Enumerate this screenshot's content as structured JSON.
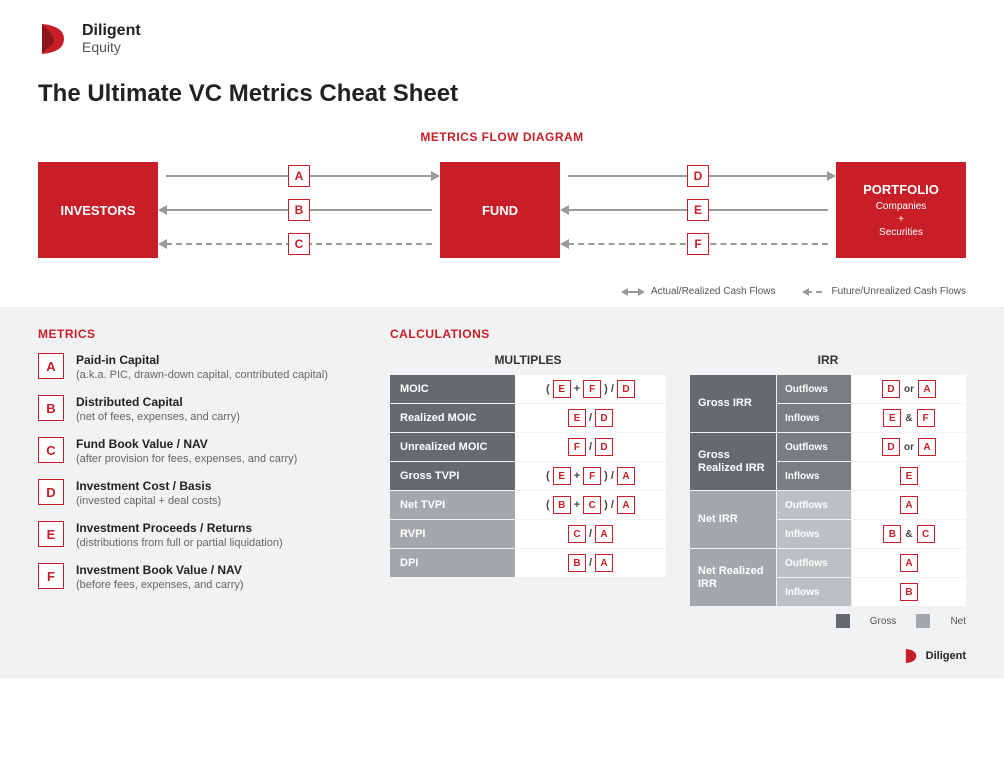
{
  "brand": {
    "name": "Diligent",
    "sub": "Equity",
    "color": "#c81e28"
  },
  "title": "The Ultimate VC Metrics Cheat Sheet",
  "flow": {
    "heading": "METRICS FLOW DIAGRAM",
    "boxes": {
      "investors": "INVESTORS",
      "fund": "FUND",
      "portfolio": {
        "title": "PORTFOLIO",
        "sub1": "Companies",
        "sub2": "+",
        "sub3": "Securities"
      }
    },
    "left_arrows": [
      {
        "badge": "A",
        "dir": "right",
        "dashed": false
      },
      {
        "badge": "B",
        "dir": "left",
        "dashed": false
      },
      {
        "badge": "C",
        "dir": "left",
        "dashed": true
      }
    ],
    "right_arrows": [
      {
        "badge": "D",
        "dir": "right",
        "dashed": false
      },
      {
        "badge": "E",
        "dir": "left",
        "dashed": false
      },
      {
        "badge": "F",
        "dir": "left",
        "dashed": true
      }
    ],
    "legend": {
      "actual": "Actual/Realized Cash Flows",
      "future": "Future/Unrealized Cash Flows"
    }
  },
  "metrics": {
    "heading": "METRICS",
    "items": [
      {
        "badge": "A",
        "title": "Paid-in Capital",
        "sub": "(a.k.a. PIC, drawn-down capital, contributed capital)"
      },
      {
        "badge": "B",
        "title": "Distributed Capital",
        "sub": "(net of fees, expenses, and carry)"
      },
      {
        "badge": "C",
        "title": "Fund Book Value / NAV",
        "sub": "(after provision for fees, expenses, and carry)"
      },
      {
        "badge": "D",
        "title": "Investment Cost / Basis",
        "sub": "(invested capital + deal costs)"
      },
      {
        "badge": "E",
        "title": "Investment Proceeds / Returns",
        "sub": "(distributions from full or partial liquidation)"
      },
      {
        "badge": "F",
        "title": "Investment Book Value / NAV",
        "sub": "(before fees, expenses, and carry)"
      }
    ]
  },
  "calculations": {
    "heading": "CALCULATIONS",
    "multiples": {
      "title": "MULTIPLES",
      "rows": [
        {
          "label": "MOIC",
          "shade": "dark",
          "formula": [
            "(",
            {
              "b": "E"
            },
            "+",
            {
              "b": "F"
            },
            ") /",
            {
              "b": "D"
            }
          ]
        },
        {
          "label": "Realized MOIC",
          "shade": "dark",
          "formula": [
            {
              "b": "E"
            },
            "/",
            {
              "b": "D"
            }
          ]
        },
        {
          "label": "Unrealized MOIC",
          "shade": "dark",
          "formula": [
            {
              "b": "F"
            },
            "/",
            {
              "b": "D"
            }
          ]
        },
        {
          "label": "Gross TVPI",
          "shade": "dark",
          "formula": [
            "(",
            {
              "b": "E"
            },
            "+",
            {
              "b": "F"
            },
            ") /",
            {
              "b": "A"
            }
          ]
        },
        {
          "label": "Net TVPI",
          "shade": "light",
          "formula": [
            "(",
            {
              "b": "B"
            },
            "+",
            {
              "b": "C"
            },
            ") /",
            {
              "b": "A"
            }
          ]
        },
        {
          "label": "RVPI",
          "shade": "light",
          "formula": [
            {
              "b": "C"
            },
            "/",
            {
              "b": "A"
            }
          ]
        },
        {
          "label": "DPI",
          "shade": "light",
          "formula": [
            {
              "b": "B"
            },
            "/",
            {
              "b": "A"
            }
          ]
        }
      ]
    },
    "irr": {
      "title": "IRR",
      "groups": [
        {
          "label": "Gross IRR",
          "shade": "dark",
          "rows": [
            {
              "sub": "Outflows",
              "formula": [
                {
                  "b": "D"
                },
                "or",
                {
                  "b": "A"
                }
              ]
            },
            {
              "sub": "Inflows",
              "formula": [
                {
                  "b": "E"
                },
                "&",
                {
                  "b": "F"
                }
              ]
            }
          ]
        },
        {
          "label": "Gross Realized IRR",
          "shade": "dark",
          "rows": [
            {
              "sub": "Outflows",
              "formula": [
                {
                  "b": "D"
                },
                "or",
                {
                  "b": "A"
                }
              ]
            },
            {
              "sub": "Inflows",
              "formula": [
                {
                  "b": "E"
                }
              ]
            }
          ]
        },
        {
          "label": "Net IRR",
          "shade": "light",
          "rows": [
            {
              "sub": "Outflows",
              "formula": [
                {
                  "b": "A"
                }
              ]
            },
            {
              "sub": "Inflows",
              "formula": [
                {
                  "b": "B"
                },
                "&",
                {
                  "b": "C"
                }
              ]
            }
          ]
        },
        {
          "label": "Net Realized IRR",
          "shade": "light",
          "rows": [
            {
              "sub": "Outflows",
              "formula": [
                {
                  "b": "A"
                }
              ]
            },
            {
              "sub": "Inflows",
              "formula": [
                {
                  "b": "B"
                }
              ]
            }
          ]
        }
      ],
      "legend": {
        "gross": "Gross",
        "net": "Net"
      }
    }
  },
  "footer": {
    "brand": "Diligent"
  },
  "colors": {
    "brand_red": "#c81e28",
    "arrow_grey": "#9a9a9a",
    "shade_dark": "#666a6e",
    "shade_light": "#a4a8ab",
    "bg_lower": "#f1f2f3"
  }
}
